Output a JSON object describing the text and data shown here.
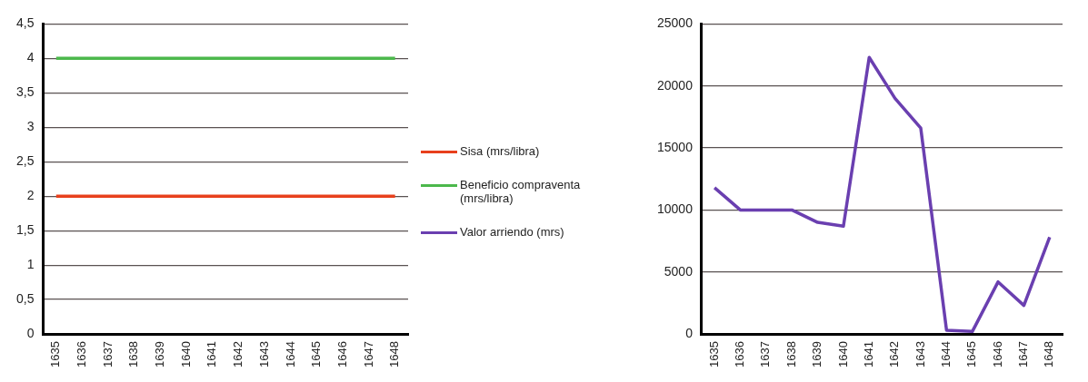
{
  "chart_data": [
    {
      "type": "line",
      "categories": [
        "1635",
        "1636",
        "1637",
        "1638",
        "1639",
        "1640",
        "1641",
        "1642",
        "1643",
        "1644",
        "1645",
        "1646",
        "1647",
        "1648"
      ],
      "series": [
        {
          "name": "Sisa (mrs/libra)",
          "color": "#e8401c",
          "values": [
            2,
            2,
            2,
            2,
            2,
            2,
            2,
            2,
            2,
            2,
            2,
            2,
            2,
            2
          ]
        },
        {
          "name": "Beneficio compraventa (mrs/libra)",
          "color": "#4cb84c",
          "values": [
            4,
            4,
            4,
            4,
            4,
            4,
            4,
            4,
            4,
            4,
            4,
            4,
            4,
            4
          ]
        }
      ],
      "ylim": [
        0,
        4.5
      ],
      "yticks": [
        {
          "value": 0,
          "label": "0"
        },
        {
          "value": 0.5,
          "label": "0,5"
        },
        {
          "value": 1,
          "label": "1"
        },
        {
          "value": 1.5,
          "label": "1,5"
        },
        {
          "value": 2,
          "label": "2"
        },
        {
          "value": 2.5,
          "label": "2,5"
        },
        {
          "value": 3,
          "label": "3"
        },
        {
          "value": 3.5,
          "label": "3,5"
        },
        {
          "value": 4,
          "label": "4"
        },
        {
          "value": 4.5,
          "label": "4,5"
        }
      ],
      "grid": "y",
      "legend": "right",
      "marker": "none",
      "line_style": "solid"
    },
    {
      "type": "line",
      "categories": [
        "1635",
        "1636",
        "1637",
        "1638",
        "1639",
        "1640",
        "1641",
        "1642",
        "1643",
        "1644",
        "1645",
        "1646",
        "1647",
        "1648"
      ],
      "series": [
        {
          "name": "Valor arriendo (mrs)",
          "color": "#6a3fb0",
          "values": [
            11800,
            10000,
            10000,
            10000,
            9000,
            8700,
            22300,
            19000,
            16600,
            300,
            200,
            4200,
            2300,
            7800
          ]
        }
      ],
      "ylim": [
        0,
        25000
      ],
      "yticks": [
        0,
        5000,
        10000,
        15000,
        20000,
        25000
      ],
      "grid": "y",
      "legend": "left",
      "marker": "none",
      "line_style": "solid"
    }
  ]
}
